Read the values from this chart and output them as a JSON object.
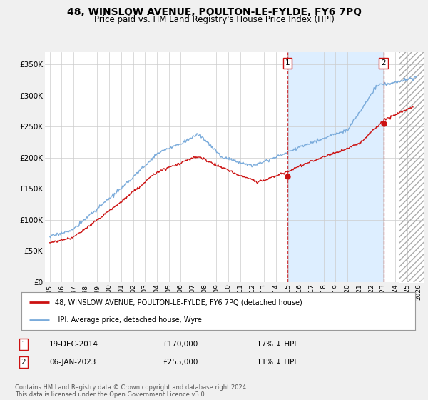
{
  "title": "48, WINSLOW AVENUE, POULTON-LE-FYLDE, FY6 7PQ",
  "subtitle": "Price paid vs. HM Land Registry's House Price Index (HPI)",
  "title_fontsize": 10,
  "subtitle_fontsize": 8.5,
  "ylabel_ticks": [
    "£0",
    "£50K",
    "£100K",
    "£150K",
    "£200K",
    "£250K",
    "£300K",
    "£350K"
  ],
  "ytick_values": [
    0,
    50000,
    100000,
    150000,
    200000,
    250000,
    300000,
    350000
  ],
  "ylim": [
    0,
    370000
  ],
  "xlim_start": 1994.6,
  "xlim_end": 2026.4,
  "background_color": "#f0f0f0",
  "plot_bg_color": "#ffffff",
  "grid_color": "#cccccc",
  "hpi_color": "#7aabdb",
  "price_color": "#cc1111",
  "shade_color": "#ddeeff",
  "marker1_date": 2014.96,
  "marker1_value": 170000,
  "marker1_label": "1",
  "marker2_date": 2023.02,
  "marker2_value": 255000,
  "marker2_label": "2",
  "vline1_date": 2014.96,
  "vline2_date": 2023.02,
  "legend_line1": "48, WINSLOW AVENUE, POULTON-LE-FYLDE, FY6 7PQ (detached house)",
  "legend_line2": "HPI: Average price, detached house, Wyre",
  "annotation1_date": "19-DEC-2014",
  "annotation1_price": "£170,000",
  "annotation1_hpi": "17% ↓ HPI",
  "annotation2_date": "06-JAN-2023",
  "annotation2_price": "£255,000",
  "annotation2_hpi": "11% ↓ HPI",
  "footer": "Contains HM Land Registry data © Crown copyright and database right 2024.\nThis data is licensed under the Open Government Licence v3.0.",
  "xtick_years": [
    1995,
    1996,
    1997,
    1998,
    1999,
    2000,
    2001,
    2002,
    2003,
    2004,
    2005,
    2006,
    2007,
    2008,
    2009,
    2010,
    2011,
    2012,
    2013,
    2014,
    2015,
    2016,
    2017,
    2018,
    2019,
    2020,
    2021,
    2022,
    2023,
    2024,
    2025,
    2026
  ]
}
